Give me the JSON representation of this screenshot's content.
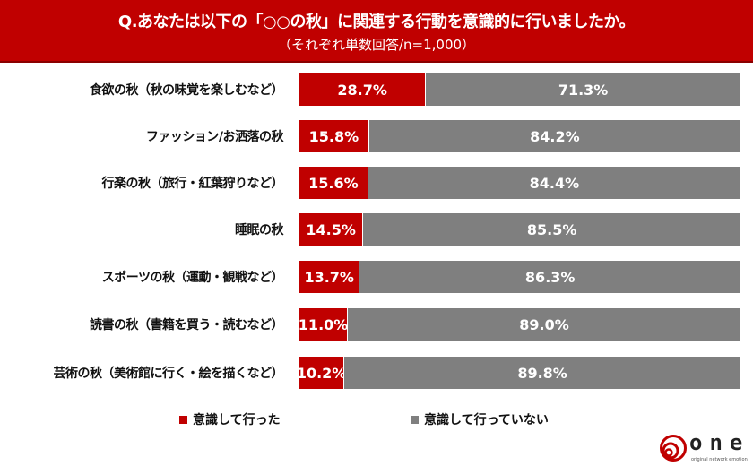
{
  "chart_data": {
    "type": "bar",
    "stacked": true,
    "orientation": "horizontal",
    "title": "Q.あなたは以下の「○○の秋」に関連する行動を意識的に行いましたか。",
    "subtitle": "（それぞれ単数回答/n=1,000）",
    "categories": [
      "食欲の秋（秋の味覚を楽しむなど）",
      "ファッション/お洒落の秋",
      "行楽の秋（旅行・紅葉狩りなど）",
      "睡眠の秋",
      "スポーツの秋（運動・観戦など）",
      "読書の秋（書籍を買う・読むなど）",
      "芸術の秋（美術館に行く・絵を描くなど）"
    ],
    "series": [
      {
        "name": "意識して行った",
        "color": "#C00000",
        "values": [
          28.7,
          15.8,
          15.6,
          14.5,
          13.7,
          11.0,
          10.2
        ],
        "labels": [
          "28.7%",
          "15.8%",
          "15.6%",
          "14.5%",
          "13.7%",
          "11.0%",
          "10.2%"
        ]
      },
      {
        "name": "意識して行っていない",
        "color": "#7F7F7F",
        "values": [
          71.3,
          84.2,
          84.4,
          85.5,
          86.3,
          89.0,
          89.8
        ],
        "labels": [
          "71.3%",
          "84.2%",
          "84.4%",
          "85.5%",
          "86.3%",
          "89.0%",
          "89.8%"
        ]
      }
    ],
    "xlim": [
      0,
      100
    ],
    "legend": "bottom"
  },
  "logo": {
    "text": "one",
    "tagline": "original network emotion"
  }
}
